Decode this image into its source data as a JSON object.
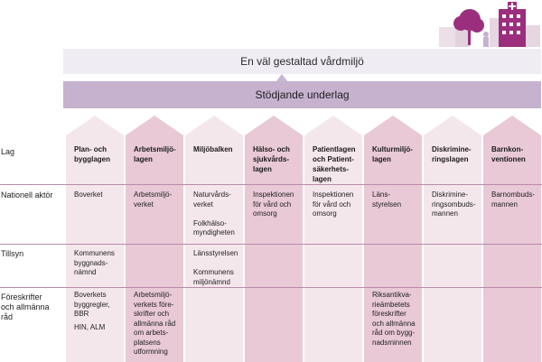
{
  "top_bar": {
    "label": "En väl gestaltad vårdmiljö"
  },
  "mid_bar": {
    "label": "Stödjande underlag"
  },
  "row_labels": {
    "lag": "Lag",
    "nationell": "Nationell aktör",
    "tillsyn": "Tillsyn",
    "foreskrifter": "Föreskrifter\noch allmänna\nråd"
  },
  "colors": {
    "column_dark": "#e8c9d5",
    "column_light": "#f4e7ec",
    "top_bar": "#efecf4",
    "mid_bar": "#c6b1cf",
    "row_line": "#b98aac",
    "illustration": "#9b2f7d"
  },
  "columns": [
    {
      "title": "Plan- och\nbygglagen",
      "tone": "light",
      "nationell": "Boverket",
      "tillsyn": "Kommunens\nbyggnads-\nnämnd",
      "foreskrifter": [
        "Boverkets\nbyggregler,\nBBR",
        "HIN, ALM"
      ]
    },
    {
      "title": "Arbetsmiljö-\nlagen",
      "tone": "dark",
      "nationell": "Arbetsmiljö-\nverket",
      "tillsyn": "",
      "foreskrifter": [
        "Arbetsmiljö-\nverkets före-\nskrifter och\nallmänna råd\nom arbets-\nplatsens\nutformning"
      ]
    },
    {
      "title": "Miljöbalken",
      "tone": "light",
      "nationell": "Naturvårds-\nverket\n\nFolkhälso-\nmyndigheten",
      "tillsyn": "Länsstyrelsen\n\nKommunens\nmiljönämnd",
      "foreskrifter": [
        ""
      ]
    },
    {
      "title": "Hälso- och\nsjukvårds-\nlagen",
      "tone": "dark",
      "nationell": "Inspektionen\nför vård och\nomsorg",
      "tillsyn": "",
      "foreskrifter": [
        ""
      ]
    },
    {
      "title": "Patientlagen\noch Patient-\nsäkerhets-\nlagen",
      "tone": "light",
      "nationell": "Inspektionen\nför vård och\nomsorg",
      "tillsyn": "",
      "foreskrifter": [
        ""
      ]
    },
    {
      "title": "Kulturmiljö-\nlagen",
      "tone": "dark",
      "nationell": "Läns-\nstyrelsen",
      "tillsyn": "",
      "foreskrifter": [
        "Riksantikva-\nrieämbetets\nföreskrifter\noch allmänna\nråd om bygg-\nnadsminnen"
      ]
    },
    {
      "title": "Diskrimine-\nringslagen",
      "tone": "light",
      "nationell": "Diskrimine-\nringsombuds-\nmannen",
      "tillsyn": "",
      "foreskrifter": [
        ""
      ]
    },
    {
      "title": "Barnkon-\nventionen",
      "tone": "dark",
      "nationell": "Barnombuds-\nmannen",
      "tillsyn": "",
      "foreskrifter": [
        ""
      ]
    }
  ]
}
